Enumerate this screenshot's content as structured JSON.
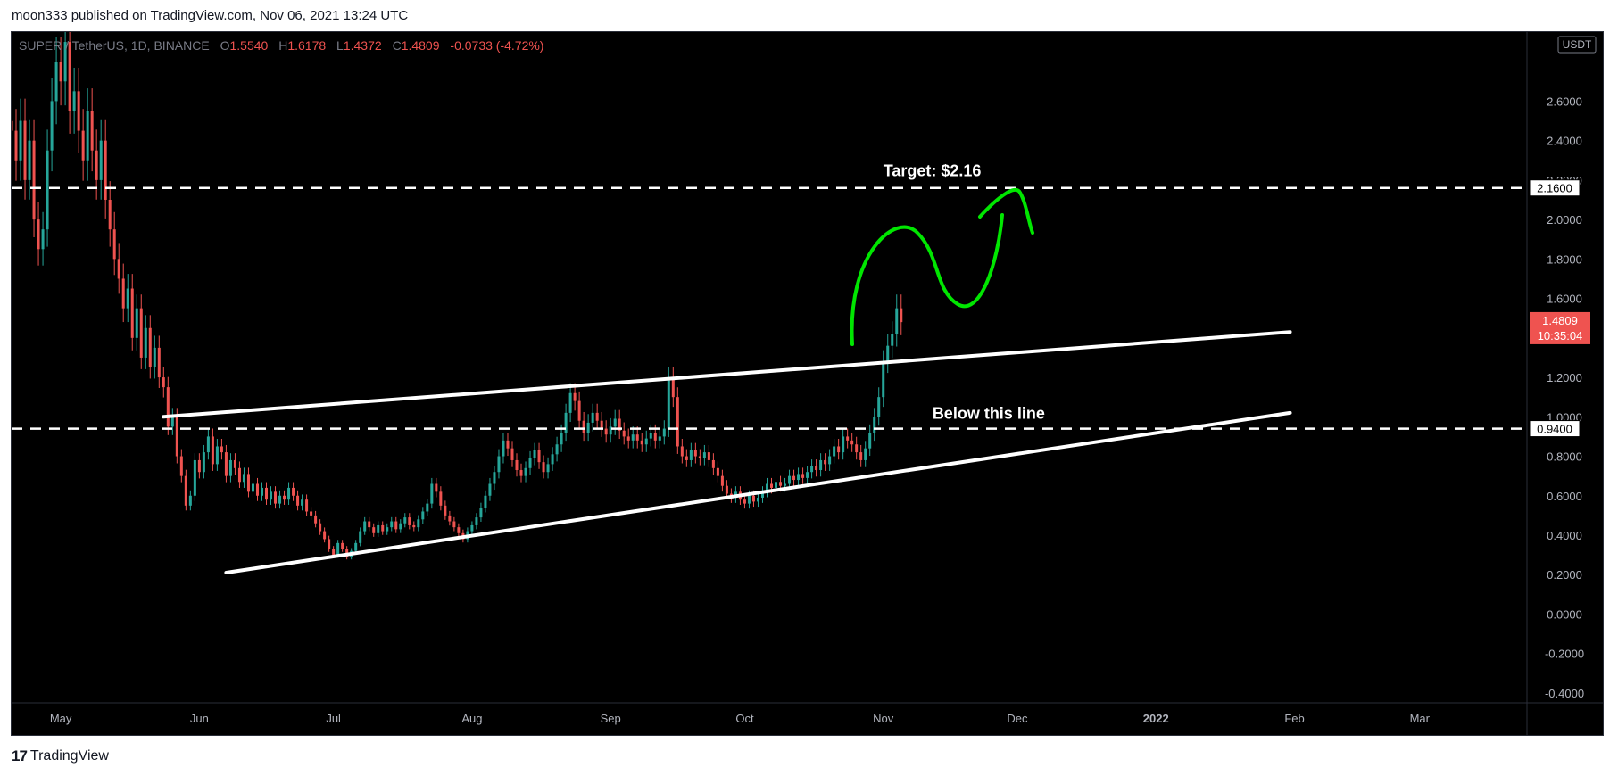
{
  "header": {
    "publish_text": "moon333 published on TradingView.com, Nov 06, 2021 13:24 UTC"
  },
  "legend": {
    "symbol": "SUPER / TetherUS, 1D, BINANCE",
    "open_label": "O",
    "open": "1.5540",
    "high_label": "H",
    "high": "1.6178",
    "low_label": "L",
    "low": "1.4372",
    "close_label": "C",
    "close": "1.4809",
    "change": "-0.0733 (-4.72%)"
  },
  "footer": {
    "logo": "17",
    "brand": "TradingView"
  },
  "colors": {
    "up": "#26a69a",
    "down": "#ef5350",
    "background": "#000000",
    "annotation": "#ffffff",
    "drawing": "#00e600"
  },
  "chart_data": {
    "type": "candlestick",
    "currency_badge": "USDT",
    "ylim": [
      -0.45,
      2.95
    ],
    "y_ticks": [
      "2.6000",
      "2.4000",
      "2.2000",
      "2.0000",
      "1.8000",
      "1.6000",
      "1.4000",
      "1.2000",
      "1.0000",
      "0.8000",
      "0.6000",
      "0.4000",
      "0.2000",
      "0.0000",
      "-0.2000",
      "-0.4000"
    ],
    "y_tick_values": [
      2.6,
      2.4,
      2.2,
      2.0,
      1.8,
      1.6,
      1.4,
      1.2,
      1.0,
      0.8,
      0.6,
      0.4,
      0.2,
      0.0,
      -0.2,
      -0.4
    ],
    "x_ticks": [
      "May",
      "Jun",
      "Jul",
      "Aug",
      "Sep",
      "Oct",
      "Nov",
      "Dec",
      "2022",
      "Feb",
      "Mar"
    ],
    "x_tick_dates": [
      "2021-05-01",
      "2021-06-01",
      "2021-07-01",
      "2021-08-01",
      "2021-09-01",
      "2021-10-01",
      "2021-11-01",
      "2021-12-01",
      "2022-01-01",
      "2022-02-01",
      "2022-03-01"
    ],
    "x_range": [
      "2021-04-20",
      "2022-03-25"
    ],
    "price_badges": [
      {
        "label": "2.1600",
        "value": 2.16
      },
      {
        "label": "0.9400",
        "value": 0.94
      }
    ],
    "last_price": {
      "label": "1.4809",
      "countdown": "10:35:04",
      "value": 1.4809
    },
    "horizontal_lines": [
      {
        "value": 2.16,
        "style": "dashed"
      },
      {
        "value": 0.94,
        "style": "dashed"
      }
    ],
    "trend_lines": [
      {
        "from": [
          "2021-05-24",
          1.0
        ],
        "to": [
          "2022-01-31",
          1.43
        ]
      },
      {
        "from": [
          "2021-06-07",
          0.21
        ],
        "to": [
          "2022-01-31",
          1.02
        ]
      }
    ],
    "annotations": [
      {
        "text": "Target: $2.16",
        "date": "2021-11-01",
        "value": 2.22
      },
      {
        "text": "Below this line",
        "date": "2021-11-12",
        "value": 0.99
      }
    ],
    "series": [
      {
        "name": "",
        "start": "2021-04-20",
        "step_days": 1,
        "close": [
          2.45,
          2.3,
          2.5,
          2.2,
          2.4,
          2.0,
          1.85,
          1.95,
          2.35,
          2.6,
          2.8,
          2.7,
          2.9,
          2.55,
          2.65,
          2.45,
          2.3,
          2.55,
          2.35,
          2.2,
          2.4,
          2.1,
          1.95,
          1.8,
          1.7,
          1.55,
          1.65,
          1.4,
          1.55,
          1.3,
          1.45,
          1.25,
          1.35,
          1.2,
          1.15,
          0.95,
          1.0,
          0.8,
          0.7,
          0.55,
          0.6,
          0.78,
          0.72,
          0.82,
          0.9,
          0.76,
          0.85,
          0.82,
          0.7,
          0.78,
          0.74,
          0.67,
          0.71,
          0.62,
          0.66,
          0.6,
          0.64,
          0.58,
          0.62,
          0.56,
          0.6,
          0.58,
          0.64,
          0.6,
          0.55,
          0.58,
          0.52,
          0.5,
          0.46,
          0.42,
          0.38,
          0.33,
          0.3,
          0.36,
          0.33,
          0.29,
          0.32,
          0.36,
          0.42,
          0.47,
          0.44,
          0.41,
          0.45,
          0.42,
          0.44,
          0.47,
          0.43,
          0.46,
          0.49,
          0.45,
          0.44,
          0.48,
          0.52,
          0.56,
          0.66,
          0.62,
          0.55,
          0.5,
          0.47,
          0.44,
          0.41,
          0.38,
          0.42,
          0.45,
          0.49,
          0.54,
          0.6,
          0.66,
          0.72,
          0.8,
          0.88,
          0.84,
          0.78,
          0.73,
          0.7,
          0.74,
          0.79,
          0.83,
          0.77,
          0.72,
          0.76,
          0.81,
          0.86,
          0.92,
          1.02,
          1.12,
          1.08,
          0.98,
          0.92,
          0.97,
          1.02,
          0.98,
          0.94,
          0.91,
          0.95,
          0.99,
          0.93,
          0.9,
          0.88,
          0.91,
          0.88,
          0.86,
          0.89,
          0.92,
          0.88,
          0.9,
          0.94,
          1.2,
          1.1,
          0.85,
          0.8,
          0.78,
          0.83,
          0.8,
          0.79,
          0.82,
          0.78,
          0.74,
          0.7,
          0.65,
          0.61,
          0.59,
          0.62,
          0.58,
          0.56,
          0.6,
          0.57,
          0.59,
          0.62,
          0.66,
          0.64,
          0.67,
          0.65,
          0.66,
          0.7,
          0.68,
          0.71,
          0.69,
          0.72,
          0.75,
          0.73,
          0.78,
          0.76,
          0.8,
          0.85,
          0.82,
          0.9,
          0.88,
          0.86,
          0.82,
          0.78,
          0.84,
          0.92,
          1.0,
          1.1,
          1.28,
          1.36,
          1.42,
          1.55,
          1.48
        ]
      }
    ]
  }
}
